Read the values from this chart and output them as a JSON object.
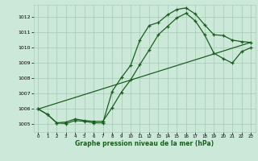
{
  "xlabel": "Graphe pression niveau de la mer (hPa)",
  "bg_color": "#cce8d8",
  "grid_color": "#aacfba",
  "line_color": "#1a6020",
  "xlim": [
    -0.5,
    23.5
  ],
  "ylim": [
    1004.5,
    1012.8
  ],
  "yticks": [
    1005,
    1006,
    1007,
    1008,
    1009,
    1010,
    1011,
    1012
  ],
  "xticks": [
    0,
    1,
    2,
    3,
    4,
    5,
    6,
    7,
    8,
    9,
    10,
    11,
    12,
    13,
    14,
    15,
    16,
    17,
    18,
    19,
    20,
    21,
    22,
    23
  ],
  "line1_x": [
    0,
    1,
    2,
    3,
    4,
    5,
    6,
    7,
    8,
    9,
    10,
    11,
    12,
    13,
    14,
    15,
    16,
    17,
    18,
    19,
    20,
    21,
    22,
    23
  ],
  "line1_y": [
    1006.0,
    1005.65,
    1005.1,
    1005.05,
    1005.25,
    1005.2,
    1005.1,
    1005.1,
    1007.15,
    1008.05,
    1008.85,
    1010.5,
    1011.45,
    1011.65,
    1012.15,
    1012.5,
    1012.6,
    1012.2,
    1011.5,
    1010.85,
    1010.8,
    1010.5,
    1010.4,
    1010.35
  ],
  "line2_x": [
    0,
    1,
    2,
    3,
    4,
    5,
    6,
    7,
    8,
    9,
    10,
    11,
    12,
    13,
    14,
    15,
    16,
    17,
    18,
    19,
    20,
    21,
    22,
    23
  ],
  "line2_y": [
    1006.0,
    1005.65,
    1005.1,
    1005.15,
    1005.35,
    1005.25,
    1005.2,
    1005.2,
    1006.1,
    1007.1,
    1007.9,
    1008.9,
    1009.85,
    1010.85,
    1011.4,
    1011.95,
    1012.25,
    1011.75,
    1010.85,
    1009.65,
    1009.3,
    1009.0,
    1009.75,
    1010.0
  ],
  "line3_x": [
    0,
    23
  ],
  "line3_y": [
    1006.0,
    1010.35
  ]
}
